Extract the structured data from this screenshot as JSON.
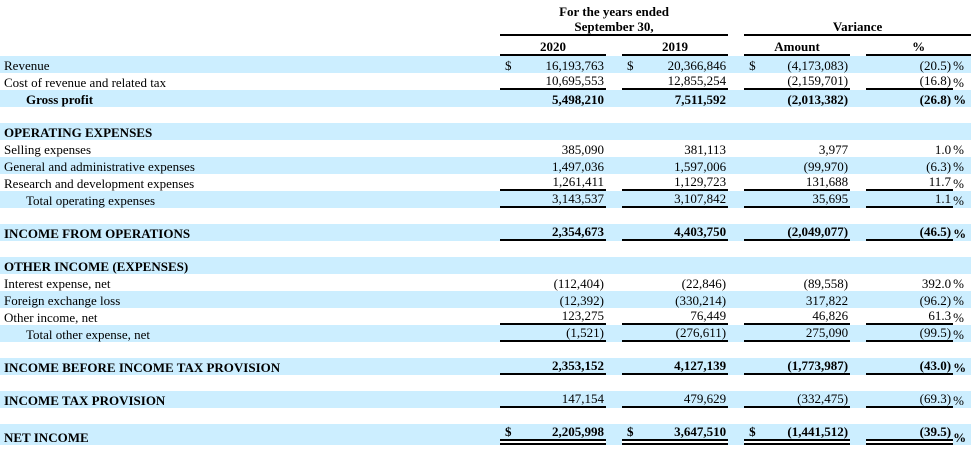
{
  "colors": {
    "row_highlight": "#CCEEFF",
    "rule": "#000000",
    "text": "#000000",
    "background": "#FFFFFF"
  },
  "symbols": {
    "dollar": "$",
    "percent": "%"
  },
  "header": {
    "years_line1": "For the years ended",
    "years_line2": "September 30,",
    "variance": "Variance",
    "col_2020": "2020",
    "col_2019": "2019",
    "col_amount": "Amount",
    "col_percent": "%"
  },
  "rows": [
    {
      "type": "data",
      "label": "Revenue",
      "indent": 0,
      "bold_label": false,
      "bold_values": false,
      "shaded": true,
      "dollar": true,
      "underline": "none",
      "v2020": "16,193,763",
      "v2019": "20,366,846",
      "amount": "(4,173,083)",
      "percent": "(20.5)%"
    },
    {
      "type": "data",
      "label": "Cost of revenue and related tax",
      "indent": 0,
      "bold_label": false,
      "bold_values": false,
      "shaded": false,
      "dollar": false,
      "underline": "single",
      "v2020": "10,695,553",
      "v2019": "12,855,254",
      "amount": "(2,159,701)",
      "percent": "(16.8)%"
    },
    {
      "type": "data",
      "label": "Gross profit",
      "indent": 1,
      "bold_label": true,
      "bold_values": true,
      "shaded": true,
      "dollar": false,
      "underline": "none",
      "v2020": "5,498,210",
      "v2019": "7,511,592",
      "amount": "(2,013,382)",
      "percent": "(26.8)%"
    },
    {
      "type": "spacer"
    },
    {
      "type": "section",
      "label": "OPERATING EXPENSES",
      "bold_label": true,
      "shaded": true
    },
    {
      "type": "data",
      "label": "Selling expenses",
      "indent": 0,
      "bold_label": false,
      "bold_values": false,
      "shaded": false,
      "dollar": false,
      "underline": "none",
      "v2020": "385,090",
      "v2019": "381,113",
      "amount": "3,977",
      "percent": "1.0%"
    },
    {
      "type": "data",
      "label": "General and administrative expenses",
      "indent": 0,
      "bold_label": false,
      "bold_values": false,
      "shaded": true,
      "dollar": false,
      "underline": "none",
      "v2020": "1,497,036",
      "v2019": "1,597,006",
      "amount": "(99,970)",
      "percent": "(6.3)%"
    },
    {
      "type": "data",
      "label": "Research and development expenses",
      "indent": 0,
      "bold_label": false,
      "bold_values": false,
      "shaded": false,
      "dollar": false,
      "underline": "single",
      "v2020": "1,261,411",
      "v2019": "1,129,723",
      "amount": "131,688",
      "percent": "11.7%"
    },
    {
      "type": "data",
      "label": "Total operating expenses",
      "indent": 1,
      "bold_label": false,
      "bold_values": false,
      "shaded": true,
      "dollar": false,
      "underline": "single",
      "v2020": "3,143,537",
      "v2019": "3,107,842",
      "amount": "35,695",
      "percent": "1.1%"
    },
    {
      "type": "spacer"
    },
    {
      "type": "data",
      "label": "INCOME FROM OPERATIONS",
      "indent": 0,
      "bold_label": true,
      "bold_values": true,
      "shaded": true,
      "dollar": false,
      "underline": "single",
      "v2020": "2,354,673",
      "v2019": "4,403,750",
      "amount": "(2,049,077)",
      "percent": "(46.5)%"
    },
    {
      "type": "spacer"
    },
    {
      "type": "section",
      "label": "OTHER INCOME (EXPENSES)",
      "bold_label": true,
      "shaded": true
    },
    {
      "type": "data",
      "label": "Interest expense, net",
      "indent": 0,
      "bold_label": false,
      "bold_values": false,
      "shaded": false,
      "dollar": false,
      "underline": "none",
      "v2020": "(112,404)",
      "v2019": "(22,846)",
      "amount": "(89,558)",
      "percent": "392.0%"
    },
    {
      "type": "data",
      "label": "Foreign exchange loss",
      "indent": 0,
      "bold_label": false,
      "bold_values": false,
      "shaded": true,
      "dollar": false,
      "underline": "none",
      "v2020": "(12,392)",
      "v2019": "(330,214)",
      "amount": "317,822",
      "percent": "(96.2)%"
    },
    {
      "type": "data",
      "label": "Other income, net",
      "indent": 0,
      "bold_label": false,
      "bold_values": false,
      "shaded": false,
      "dollar": false,
      "underline": "single",
      "v2020": "123,275",
      "v2019": "76,449",
      "amount": "46,826",
      "percent": "61.3%"
    },
    {
      "type": "data",
      "label": "Total other expense, net",
      "indent": 1,
      "bold_label": false,
      "bold_values": false,
      "shaded": true,
      "dollar": false,
      "underline": "single",
      "v2020": "(1,521)",
      "v2019": "(276,611)",
      "amount": "275,090",
      "percent": "(99.5)%"
    },
    {
      "type": "spacer"
    },
    {
      "type": "data",
      "label": "INCOME BEFORE INCOME TAX PROVISION",
      "indent": 0,
      "bold_label": true,
      "bold_values": true,
      "shaded": true,
      "dollar": false,
      "underline": "single",
      "v2020": "2,353,152",
      "v2019": "4,127,139",
      "amount": "(1,773,987)",
      "percent": "(43.0)%"
    },
    {
      "type": "spacer"
    },
    {
      "type": "data",
      "label": "INCOME TAX PROVISION",
      "indent": 0,
      "bold_label": true,
      "bold_values": false,
      "shaded": true,
      "dollar": false,
      "underline": "single",
      "v2020": "147,154",
      "v2019": "479,629",
      "amount": "(332,475)",
      "percent": "(69.3)%"
    },
    {
      "type": "spacer"
    },
    {
      "type": "data",
      "label": "NET INCOME",
      "indent": 0,
      "bold_label": true,
      "bold_values": true,
      "shaded": true,
      "dollar": true,
      "underline": "double",
      "v2020": "2,205,998",
      "v2019": "3,647,510",
      "amount": "(1,441,512)",
      "percent": "(39.5)%"
    }
  ]
}
